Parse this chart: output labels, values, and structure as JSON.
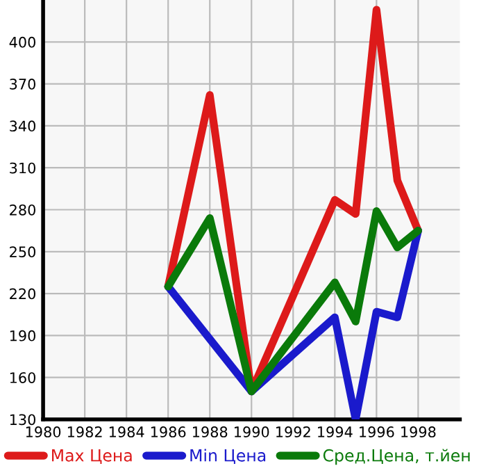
{
  "chart_data": {
    "type": "line",
    "xlim": [
      1980,
      2000
    ],
    "xticks": [
      1980,
      1982,
      1984,
      1986,
      1988,
      1990,
      1992,
      1994,
      1996,
      1998
    ],
    "ylim": [
      130,
      430
    ],
    "yticks": [
      130,
      160,
      190,
      220,
      250,
      280,
      310,
      340,
      370,
      400
    ],
    "grid": true,
    "legend": "bottom",
    "marker": "none",
    "line_style": "solid",
    "series": [
      {
        "name": "Max Цена",
        "color": "#dd1a1a",
        "x": [
          1986,
          1988,
          1990,
          1994,
          1995,
          1996,
          1997,
          1998
        ],
        "values": [
          225,
          362,
          150,
          287,
          277,
          423,
          301,
          265
        ]
      },
      {
        "name": "Min Цена",
        "color": "#1a1acc",
        "x": [
          1986,
          1990,
          1994,
          1995,
          1996,
          1997,
          1998
        ],
        "values": [
          225,
          150,
          203,
          130,
          207,
          203,
          265
        ]
      },
      {
        "name": "Сред.Цена, т.йен",
        "color": "#0a7a0a",
        "x": [
          1986,
          1988,
          1990,
          1994,
          1995,
          1996,
          1997,
          1998
        ],
        "values": [
          225,
          274,
          150,
          228,
          200,
          279,
          253,
          265
        ]
      }
    ]
  }
}
